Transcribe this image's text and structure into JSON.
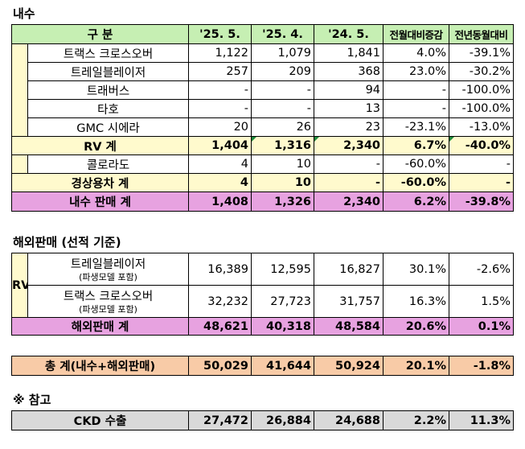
{
  "section1_title": "내수",
  "section2_title": "해외판매 (선적 기준)",
  "section3_title": "※ 참고",
  "header": {
    "col0": "구    분",
    "c1": "'25. 5.",
    "c2": "'25. 4.",
    "c3": "'24. 5.",
    "c4": "전월대비증감",
    "c5": "전년동월대비"
  },
  "domestic": {
    "rows": [
      {
        "name": "트랙스 크로스오버",
        "v": [
          "1,122",
          "1,079",
          "1,841",
          "4.0%",
          "-39.1%"
        ]
      },
      {
        "name": "트레일블레이저",
        "v": [
          "257",
          "209",
          "368",
          "23.0%",
          "-30.2%"
        ]
      },
      {
        "name": "트래버스",
        "v": [
          "-",
          "-",
          "94",
          "-",
          "-100.0%"
        ]
      },
      {
        "name": "타호",
        "v": [
          "-",
          "-",
          "13",
          "-",
          "-100.0%"
        ]
      },
      {
        "name": "GMC 시에라",
        "v": [
          "20",
          "26",
          "23",
          "-23.1%",
          "-13.0%"
        ]
      }
    ],
    "rv_total": {
      "name": "RV 계",
      "v": [
        "1,404",
        "1,316",
        "2,340",
        "6.7%",
        "-40.0%"
      ]
    },
    "commercial_rows": [
      {
        "name": "콜로라도",
        "v": [
          "4",
          "10",
          "-",
          "-60.0%",
          "-"
        ]
      }
    ],
    "commercial_total": {
      "name": "경상용차 계",
      "v": [
        "4",
        "10",
        "-",
        "-60.0%",
        "-"
      ]
    },
    "total": {
      "name": "내수 판매 계",
      "v": [
        "1,408",
        "1,326",
        "2,340",
        "6.2%",
        "-39.8%"
      ]
    }
  },
  "export": {
    "group_label": "RV",
    "rows": [
      {
        "name": "트레일블레이저",
        "sub": "(파생모델 포함)",
        "v": [
          "16,389",
          "12,595",
          "16,827",
          "30.1%",
          "-2.6%"
        ]
      },
      {
        "name": "트랙스 크로스오버",
        "sub": "(파생모델 포함)",
        "v": [
          "32,232",
          "27,723",
          "31,757",
          "16.3%",
          "1.5%"
        ]
      }
    ],
    "total": {
      "name": "해외판매 계",
      "v": [
        "48,621",
        "40,318",
        "48,584",
        "20.6%",
        "0.1%"
      ]
    }
  },
  "grand_total": {
    "name": "총  계(내수+해외판매)",
    "v": [
      "50,029",
      "41,644",
      "50,924",
      "20.1%",
      "-1.8%"
    ]
  },
  "ckd": {
    "name": "CKD 수출",
    "v": [
      "27,472",
      "26,884",
      "24,688",
      "2.2%",
      "11.3%"
    ]
  },
  "colors": {
    "header": "#c6efb3",
    "subtotal": "#fffacd",
    "total": "#e7a2e0",
    "grand_total": "#f8cba7",
    "ckd": "#d9d9d9"
  }
}
